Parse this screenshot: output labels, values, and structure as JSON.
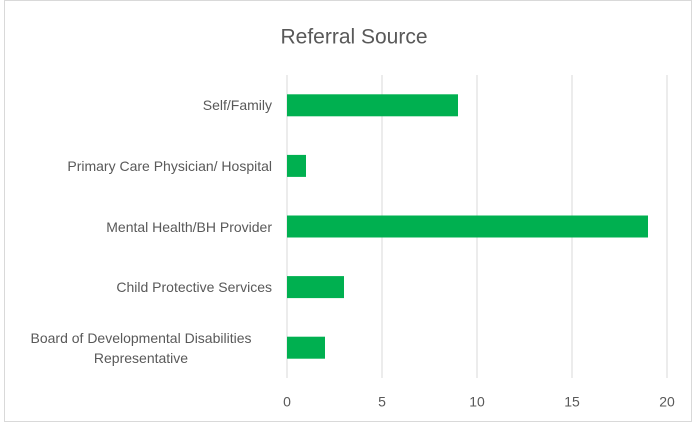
{
  "chart_data": {
    "type": "bar",
    "orientation": "horizontal",
    "title": "Referral Source",
    "categories": [
      "Self/Family",
      "Primary Care Physician/ Hospital",
      "Mental Health/BH Provider",
      "Child Protective Services",
      "Board of Developmental Disabilities Representative"
    ],
    "values": [
      9,
      1,
      19,
      3,
      2
    ],
    "color": "#00b050",
    "xlim": [
      0,
      20
    ],
    "xticks": [
      0,
      5,
      10,
      15,
      20
    ],
    "grid": true
  }
}
